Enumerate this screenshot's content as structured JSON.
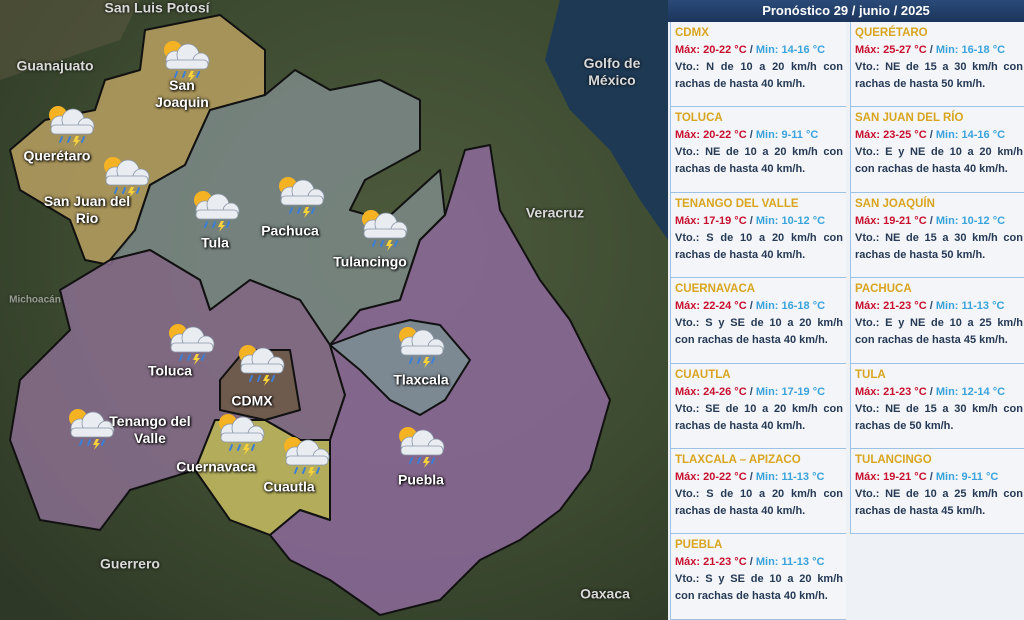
{
  "header": {
    "title": "Pronóstico 29 / junio / 2025"
  },
  "separator": "/",
  "map": {
    "regions": [
      "San Luis Potosí",
      "Guanajuato",
      "Golfo de México",
      "Veracruz",
      "Michoacán",
      "Guerrero",
      "Oaxaca"
    ],
    "cities": [
      "San Joaquin",
      "Querétaro",
      "San Juan del Rio",
      "Tula",
      "Pachuca",
      "Tulancingo",
      "Toluca",
      "CDMX",
      "Tlaxcala",
      "Tenango del Valle",
      "Cuernavaca",
      "Cuautla",
      "Puebla"
    ]
  },
  "forecasts": [
    {
      "city": "CDMX",
      "max": "Máx: 20-22 °C",
      "min": "Min: 14-16 °C",
      "wind": "Vto.: N de 10 a 20 km/h con rachas de hasta 40 km/h."
    },
    {
      "city": "QUERÉTARO",
      "max": "Máx: 25-27 °C",
      "min": "Min: 16-18 °C",
      "wind": "Vto.: NE de 15 a 30 km/h con rachas de hasta 50 km/h."
    },
    {
      "city": "TOLUCA",
      "max": "Máx: 20-22 °C",
      "min": "Min: 9-11 °C",
      "wind": "Vto.: NE de 10 a 20 km/h con rachas de hasta 40 km/h."
    },
    {
      "city": "SAN JUAN DEL RÍO",
      "max": "Máx: 23-25 °C",
      "min": "Min: 14-16 °C",
      "wind": "Vto.: E y NE de 10 a 20 km/h con rachas de hasta 40 km/h."
    },
    {
      "city": "TENANGO DEL VALLE",
      "max": "Máx: 17-19 °C",
      "min": "Min: 10-12 °C",
      "wind": "Vto.: S de 10 a 20 km/h con rachas de hasta 40 km/h."
    },
    {
      "city": "SAN JOAQUÍN",
      "max": "Máx: 19-21 °C",
      "min": "Min: 10-12 °C",
      "wind": "Vto.: NE de 15 a 30 km/h con rachas de hasta 50 km/h."
    },
    {
      "city": "CUERNAVACA",
      "max": "Máx: 22-24 °C",
      "min": "Min: 16-18 °C",
      "wind": "Vto.: S y SE de 10 a 20 km/h con rachas de hasta 40 km/h."
    },
    {
      "city": "PACHUCA",
      "max": "Máx: 21-23 °C",
      "min": "Min: 11-13 °C",
      "wind": "Vto.: E y NE de 10 a 25 km/h con rachas de hasta 45 km/h."
    },
    {
      "city": "CUAUTLA",
      "max": "Máx: 24-26 °C",
      "min": "Min: 17-19 °C",
      "wind": "Vto.: SE de 10 a 20 km/h con rachas de hasta 40 km/h."
    },
    {
      "city": "TULA",
      "max": "Máx: 21-23 °C",
      "min": "Min: 12-14 °C",
      "wind": "Vto.: NE de 15 a 30 km/h con rachas de 50 km/h."
    },
    {
      "city": "TLAXCALA – APIZACO",
      "max": "Máx: 20-22 °C",
      "min": "Min: 11-13 °C",
      "wind": "Vto.: S de 10 a 20 km/h con rachas de hasta 40 km/h."
    },
    {
      "city": "TULANCINGO",
      "max": "Máx: 19-21 °C",
      "min": "Min: 9-11 °C",
      "wind": "Vto.: NE de 10 a 25 km/h con rachas de hasta 45 km/h."
    },
    {
      "city": "PUEBLA",
      "max": "Máx: 21-23 °C",
      "min": "Min: 11-13 °C",
      "wind": "Vto.: S y SE de 10 a 20 km/h con rachas de hasta 40 km/h."
    }
  ]
}
